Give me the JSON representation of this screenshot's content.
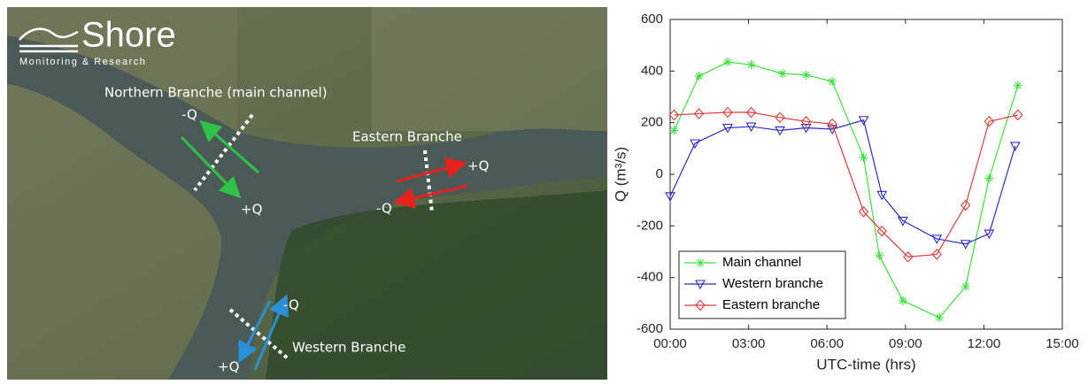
{
  "map": {
    "logo": {
      "title": "Shore",
      "subtitle": "Monitoring & Research"
    },
    "labels": [
      "Northern Branche (main channel)",
      "-Q",
      "+Q",
      "Eastern Branche",
      "+Q",
      "-Q",
      "-Q",
      "+Q",
      "Western Branche"
    ]
  },
  "chart_data": {
    "type": "line",
    "xlabel": "UTC-time (hrs)",
    "ylabel": "Q (m³/s)",
    "xlim": [
      0,
      15
    ],
    "xticks": [
      {
        "value": 0,
        "label": "00:00"
      },
      {
        "value": 3,
        "label": "03:00"
      },
      {
        "value": 6,
        "label": "06:00"
      },
      {
        "value": 9,
        "label": "09:00"
      },
      {
        "value": 12,
        "label": "12:00"
      },
      {
        "value": 15,
        "label": "15:00"
      }
    ],
    "ylim": [
      -600,
      600
    ],
    "yticks": [
      -600,
      -400,
      -200,
      0,
      200,
      400,
      600
    ],
    "legend": "lower left",
    "series": [
      {
        "name": "Main channel",
        "color": "#3de23d",
        "marker": "asterisk",
        "x": [
          0.15,
          1.1,
          2.2,
          3.1,
          4.3,
          5.2,
          6.2,
          7.4,
          8.0,
          8.9,
          10.3,
          11.3,
          12.2,
          13.3
        ],
        "values": [
          170,
          380,
          435,
          425,
          390,
          385,
          360,
          65,
          -315,
          -490,
          -555,
          -435,
          -15,
          345
        ]
      },
      {
        "name": "Western branche",
        "color": "#2b2bc4",
        "marker": "triangle-down",
        "x": [
          0.0,
          0.95,
          2.2,
          3.1,
          4.2,
          5.2,
          6.2,
          7.4,
          8.1,
          8.9,
          10.2,
          11.3,
          12.2,
          13.2
        ],
        "values": [
          -85,
          120,
          180,
          185,
          170,
          180,
          175,
          210,
          -80,
          -180,
          -250,
          -270,
          -230,
          110
        ]
      },
      {
        "name": "Eastern branche",
        "color": "#e03a3a",
        "marker": "diamond",
        "x": [
          0.15,
          1.1,
          2.2,
          3.1,
          4.2,
          5.2,
          6.2,
          7.4,
          8.1,
          9.1,
          10.2,
          11.3,
          12.2,
          13.3
        ],
        "values": [
          230,
          235,
          240,
          240,
          220,
          205,
          195,
          -145,
          -220,
          -320,
          -310,
          -120,
          205,
          230
        ]
      }
    ]
  }
}
